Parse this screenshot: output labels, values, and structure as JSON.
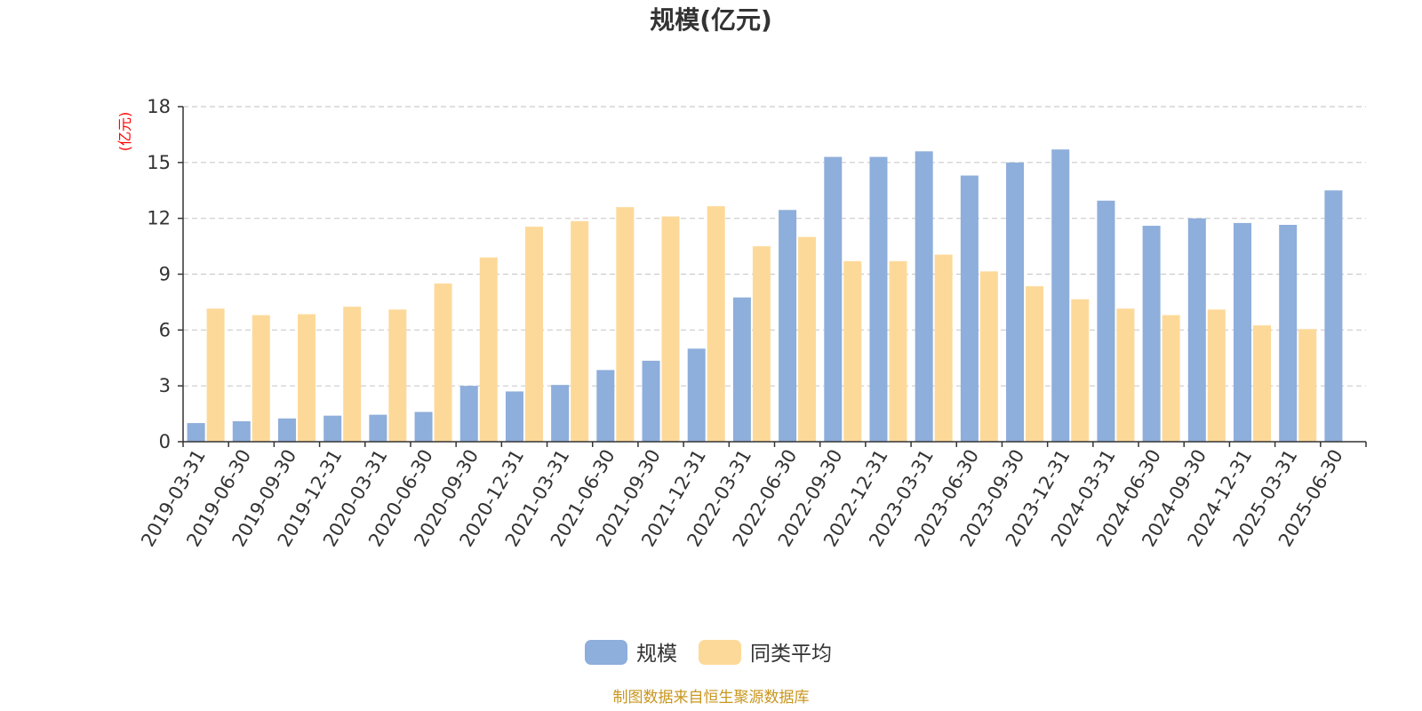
{
  "chart_data": {
    "type": "bar",
    "title": "规模(亿元)",
    "ylabel": "(亿元)",
    "xlabel": "",
    "ylim": [
      0,
      18
    ],
    "yticks": [
      0,
      3,
      6,
      9,
      12,
      15,
      18
    ],
    "grid": true,
    "legend_position": "bottom-center",
    "categories": [
      "2019-03-31",
      "2019-06-30",
      "2019-09-30",
      "2019-12-31",
      "2020-03-31",
      "2020-06-30",
      "2020-09-30",
      "2020-12-31",
      "2021-03-31",
      "2021-06-30",
      "2021-09-30",
      "2021-12-31",
      "2022-03-31",
      "2022-06-30",
      "2022-09-30",
      "2022-12-31",
      "2023-03-31",
      "2023-06-30",
      "2023-09-30",
      "2023-12-31",
      "2024-03-31",
      "2024-06-30",
      "2024-09-30",
      "2024-12-31",
      "2025-03-31",
      "2025-06-30"
    ],
    "series": [
      {
        "name": "规模",
        "color": "#8eaedb",
        "values": [
          1.0,
          1.1,
          1.25,
          1.4,
          1.45,
          1.6,
          3.0,
          2.7,
          3.05,
          3.85,
          4.35,
          5.0,
          7.75,
          12.45,
          15.3,
          15.3,
          15.6,
          14.3,
          15.0,
          15.7,
          12.95,
          11.6,
          12.0,
          11.75,
          11.65,
          13.5
        ]
      },
      {
        "name": "同类平均",
        "color": "#fdd999",
        "values": [
          7.15,
          6.8,
          6.85,
          7.25,
          7.1,
          8.5,
          9.9,
          11.55,
          11.85,
          12.6,
          12.1,
          12.65,
          10.5,
          11.0,
          9.7,
          9.7,
          10.05,
          9.15,
          8.35,
          7.65,
          7.15,
          6.8,
          7.1,
          6.25,
          6.05,
          null
        ]
      }
    ]
  },
  "colors": {
    "axis": "#333333",
    "grid": "#cccccc",
    "ylabel": "#ff0000",
    "source": "#c8961e"
  },
  "source_note": "制图数据来自恒生聚源数据库"
}
